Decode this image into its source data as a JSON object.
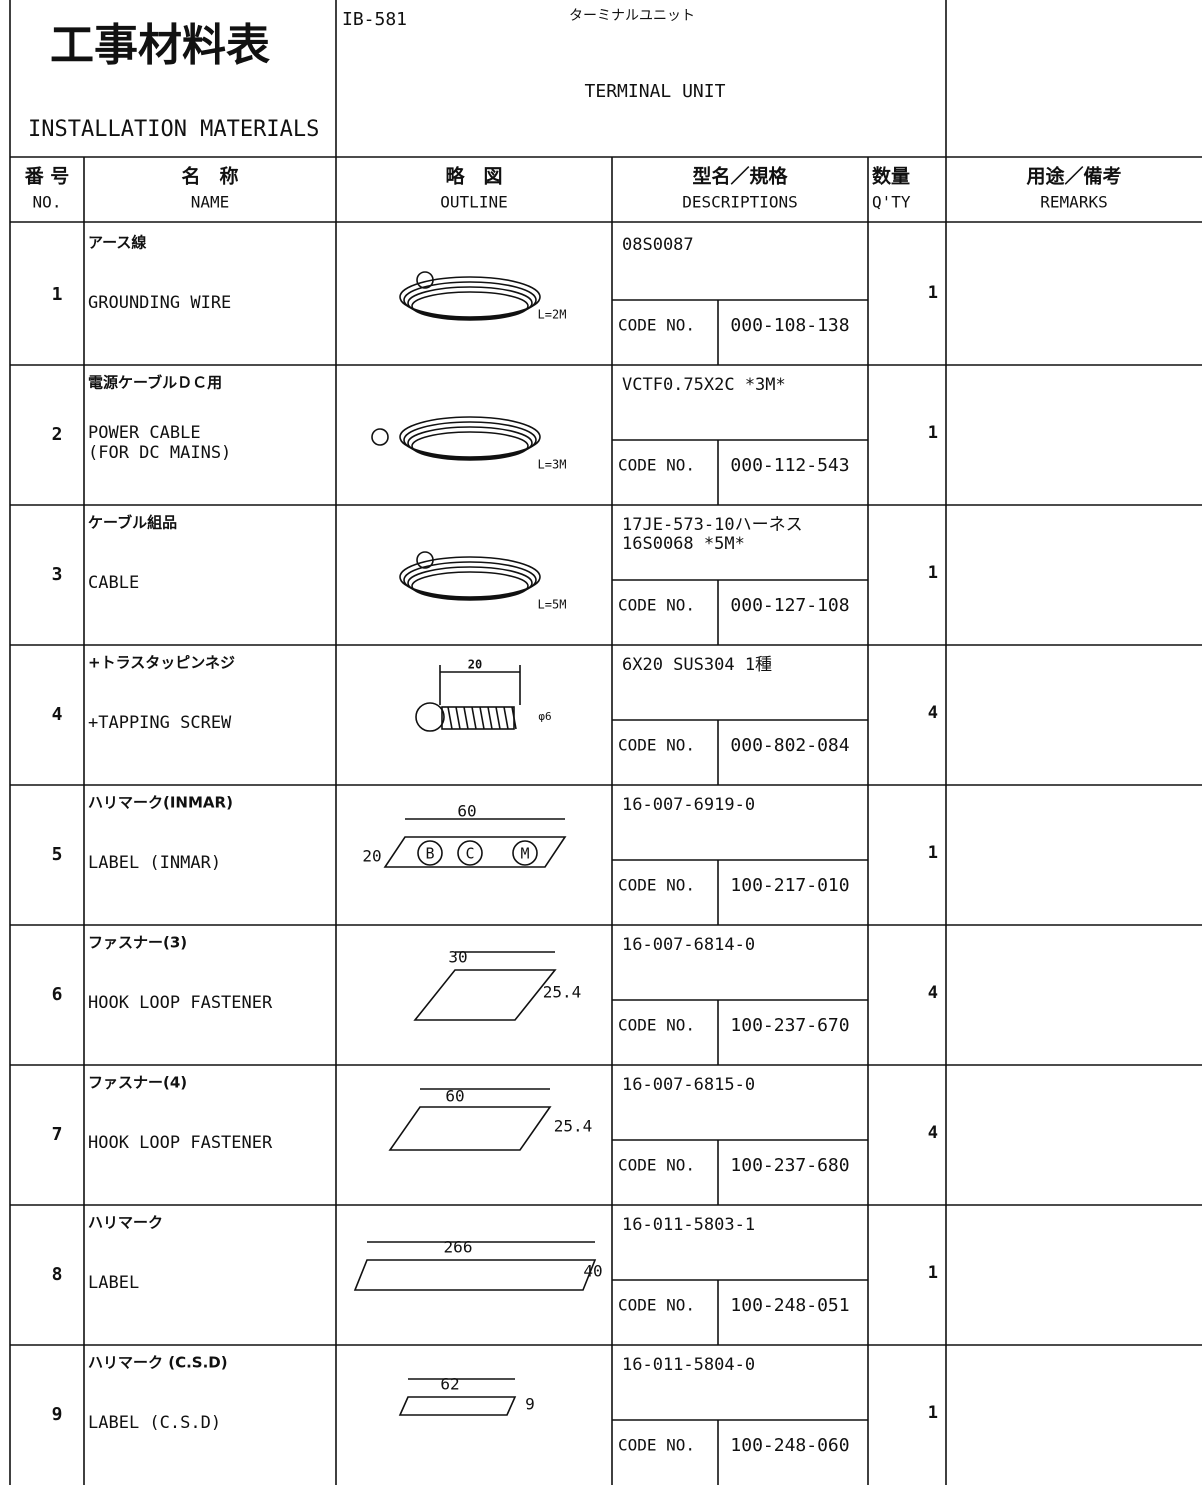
{
  "header": {
    "title_ja": "工事材料表",
    "title_en": "INSTALLATION MATERIALS",
    "doc_no": "IB-581",
    "name_ja": "ターミナルユニット",
    "name_en": "TERMINAL UNIT"
  },
  "columns": [
    {
      "ja": "番 号",
      "en": "NO."
    },
    {
      "ja": "名　称",
      "en": "NAME"
    },
    {
      "ja": "略　図",
      "en": "OUTLINE"
    },
    {
      "ja": "型名／規格",
      "en": "DESCRIPTIONS"
    },
    {
      "ja": "数量",
      "en": "Q'TY"
    },
    {
      "ja": "用途／備考",
      "en": "REMARKS"
    }
  ],
  "code_label": "CODE NO.",
  "rows": [
    {
      "no": "1",
      "name_ja": "アース線",
      "name_en": [
        "GROUNDING WIRE"
      ],
      "description": [
        "08S0087"
      ],
      "code": "000-108-138",
      "qty": "1",
      "outline_labels": [
        "L=2M"
      ]
    },
    {
      "no": "2",
      "name_ja": "電源ケーブルＤＣ用",
      "name_en": [
        "POWER CABLE",
        "(FOR DC MAINS)"
      ],
      "description": [
        "VCTF0.75X2C *3M*"
      ],
      "code": "000-112-543",
      "qty": "1",
      "outline_labels": [
        "L=3M"
      ]
    },
    {
      "no": "3",
      "name_ja": "ケーブル組品",
      "name_en": [
        "CABLE"
      ],
      "description": [
        "17JE-573-10ハーネス",
        "16S0068 *5M*"
      ],
      "code": "000-127-108",
      "qty": "1",
      "outline_labels": [
        "L=5M"
      ]
    },
    {
      "no": "4",
      "name_ja": "+トラスタッピンネジ",
      "name_en": [
        "+TAPPING SCREW"
      ],
      "description": [
        "6X20 SUS304 1種"
      ],
      "code": "000-802-084",
      "qty": "4",
      "outline_labels": [
        "20",
        "φ6"
      ]
    },
    {
      "no": "5",
      "name_ja": "ハリマーク(INMAR)",
      "name_en": [
        "LABEL (INMAR)"
      ],
      "description": [
        "16-007-6919-0"
      ],
      "code": "100-217-010",
      "qty": "1",
      "outline_labels": [
        "60",
        "20",
        "B",
        "C",
        "M"
      ]
    },
    {
      "no": "6",
      "name_ja": "ファスナー(3)",
      "name_en": [
        "HOOK LOOP FASTENER"
      ],
      "description": [
        "16-007-6814-0"
      ],
      "code": "100-237-670",
      "qty": "4",
      "outline_labels": [
        "30",
        "25.4"
      ]
    },
    {
      "no": "7",
      "name_ja": "ファスナー(4)",
      "name_en": [
        "HOOK LOOP FASTENER"
      ],
      "description": [
        "16-007-6815-0"
      ],
      "code": "100-237-680",
      "qty": "4",
      "outline_labels": [
        "60",
        "25.4"
      ]
    },
    {
      "no": "8",
      "name_ja": "ハリマーク",
      "name_en": [
        "LABEL"
      ],
      "description": [
        "16-011-5803-1"
      ],
      "code": "100-248-051",
      "qty": "1",
      "outline_labels": [
        "266",
        "40"
      ]
    },
    {
      "no": "9",
      "name_ja": "ハリマーク (C.S.D)",
      "name_en": [
        "LABEL (C.S.D)"
      ],
      "description": [
        "16-011-5804-0"
      ],
      "code": "100-248-060",
      "qty": "1",
      "outline_labels": [
        "62",
        "9"
      ]
    }
  ]
}
